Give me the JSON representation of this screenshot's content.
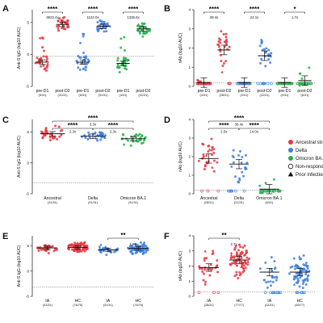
{
  "colors": {
    "ancestral": "#e8363f",
    "delta": "#3f7fe0",
    "omicron": "#22b04a",
    "axis": "#111111"
  },
  "legend": {
    "items": [
      {
        "label": "Ancestral strain",
        "marker": "circle-filled",
        "color": "#e8363f"
      },
      {
        "label": "Delta",
        "marker": "circle-filled",
        "color": "#3f7fe0"
      },
      {
        "label": "Omicron BA.1",
        "marker": "circle-filled",
        "color": "#22b04a"
      },
      {
        "label": "Non-responders",
        "marker": "circle-open",
        "color": "#111111"
      },
      {
        "label": "Prior infection",
        "marker": "triangle-filled",
        "color": "#111111"
      }
    ]
  },
  "chart_data": [
    {
      "panel": "A",
      "type": "scatter",
      "ylabel": "Anti-S IgG (log10 AUC)",
      "ylim": [
        -5,
        7
      ],
      "yticks": [
        -5,
        0,
        5
      ],
      "cutoff": -0.3,
      "cutoff_style": "dotted",
      "categories": [
        {
          "label": "pre-D1",
          "n_text": "(6/31)",
          "strain": "ancestral",
          "median": -1.2,
          "n": 31
        },
        {
          "label": "post-D2",
          "n_text": "(31/31)",
          "strain": "ancestral",
          "median": 4.7,
          "n": 31
        },
        {
          "label": "pre-D1",
          "n_text": "(6/31)",
          "strain": "delta",
          "median": -1.2,
          "n": 31
        },
        {
          "label": "post-D2",
          "n_text": "(31/31)",
          "strain": "delta",
          "median": 4.4,
          "n": 31
        },
        {
          "label": "pre-D1",
          "n_text": "(4/31)",
          "strain": "omicron",
          "median": -1.4,
          "n": 31
        },
        {
          "label": "post-D2",
          "n_text": "(31/31)",
          "strain": "omicron",
          "median": 4.0,
          "n": 31
        }
      ],
      "annotations": [
        {
          "text": "****",
          "between": [
            0,
            1
          ],
          "fold": "3622.4x"
        },
        {
          "text": "****",
          "between": [
            2,
            3
          ],
          "fold": "1122.0x"
        },
        {
          "text": "****",
          "between": [
            4,
            5
          ],
          "fold": "1336.6x"
        }
      ]
    },
    {
      "panel": "B",
      "type": "scatter",
      "ylabel": "nAb (log10 AUC)",
      "ylim": [
        0,
        4
      ],
      "yticks": [
        0,
        1,
        2,
        3,
        4
      ],
      "cutoff": 0.2,
      "cutoff_style": "dotted",
      "categories": [
        {
          "label": "pre-D1",
          "n_text": "(4/31)",
          "strain": "ancestral",
          "median": 0.2,
          "n": 31
        },
        {
          "label": "post-D2",
          "n_text": "(28/31)",
          "strain": "ancestral",
          "median": 1.9,
          "n": 31
        },
        {
          "label": "pre-D1",
          "n_text": "(0/31)",
          "strain": "delta",
          "median": 0.2,
          "n": 31
        },
        {
          "label": "post-D2",
          "n_text": "(22/31)",
          "strain": "delta",
          "median": 1.6,
          "n": 31
        },
        {
          "label": "pre-D1",
          "n_text": "(0/31)",
          "strain": "omicron",
          "median": 0.2,
          "n": 31
        },
        {
          "label": "post-D2",
          "n_text": "(6/31)",
          "strain": "omicron",
          "median": 0.3,
          "n": 31
        }
      ],
      "annotations": [
        {
          "text": "****",
          "between": [
            0,
            1
          ],
          "fold": "39.4x"
        },
        {
          "text": "****",
          "between": [
            2,
            3
          ],
          "fold": "24.1x"
        },
        {
          "text": "*",
          "between": [
            4,
            5
          ],
          "fold": "1.7x"
        }
      ]
    },
    {
      "panel": "C",
      "type": "scatter",
      "ylabel": "Anti-S IgG (log10 AUC)",
      "ylim": [
        -5,
        7
      ],
      "yticks": [
        -5,
        0,
        5
      ],
      "cutoff": -3.2,
      "cutoff_style": "dotted",
      "categories": [
        {
          "label": "Ancestral",
          "n_text": "(31/31)",
          "strain": "ancestral",
          "median": 4.7,
          "n": 31
        },
        {
          "label": "Delta",
          "n_text": "(31/31)",
          "strain": "delta",
          "median": 4.3,
          "n": 31
        },
        {
          "label": "Omicron BA.1",
          "n_text": "(31/31)",
          "strain": "omicron",
          "median": 3.9,
          "n": 31
        }
      ],
      "annotations": [
        {
          "text": "****",
          "between": [
            0,
            2
          ],
          "fold": "3.3x"
        },
        {
          "text": "****",
          "between": [
            0,
            1
          ],
          "fold": "2.3x"
        },
        {
          "text": "****",
          "between": [
            1,
            2
          ],
          "fold": "2.3x"
        }
      ]
    },
    {
      "panel": "D",
      "type": "scatter",
      "ylabel": "nAb (log10 AUC)",
      "ylim": [
        0,
        4
      ],
      "yticks": [
        0,
        1,
        2,
        3,
        4
      ],
      "cutoff": 0.2,
      "cutoff_style": "dotted",
      "categories": [
        {
          "label": "Ancestral",
          "n_text": "(28/31)",
          "strain": "ancestral",
          "median": 1.9,
          "n": 31
        },
        {
          "label": "Delta",
          "n_text": "(22/31)",
          "strain": "delta",
          "median": 1.6,
          "n": 31
        },
        {
          "label": "Omicron BA.1",
          "n_text": "(6/31)",
          "strain": "omicron",
          "median": 0.25,
          "n": 31
        }
      ],
      "annotations": [
        {
          "text": "****",
          "between": [
            0,
            2
          ],
          "fold": "36.4x"
        },
        {
          "text": "****",
          "between": [
            0,
            1
          ],
          "fold": "2.5x"
        },
        {
          "text": "****",
          "between": [
            1,
            2
          ],
          "fold": "14.0x"
        }
      ]
    },
    {
      "panel": "E",
      "type": "scatter",
      "ylabel": "Anti-S IgG (log10 AUC)",
      "ylim": [
        -5,
        7
      ],
      "yticks": [
        -5,
        0,
        5
      ],
      "cutoff": -3.2,
      "cutoff_style": "dotted",
      "categories": [
        {
          "label": "IA",
          "n_text": "(31/31)",
          "strain": "ancestral",
          "median": 4.6,
          "n": 31
        },
        {
          "label": "HC",
          "n_text": "(76/76)",
          "strain": "ancestral",
          "median": 4.7,
          "n": 76
        },
        {
          "label": "IA",
          "n_text": "(31/31)",
          "strain": "delta",
          "median": 4.2,
          "n": 31
        },
        {
          "label": "HC",
          "n_text": "(76/76)",
          "strain": "delta",
          "median": 4.5,
          "n": 76
        }
      ],
      "annotations": [
        {
          "text": "**",
          "between": [
            2,
            3
          ],
          "fold": "1.8x"
        }
      ]
    },
    {
      "panel": "F",
      "type": "scatter",
      "ylabel": "nAb (log10 AUC)",
      "ylim": [
        0,
        4
      ],
      "yticks": [
        0,
        1,
        2,
        3,
        4
      ],
      "cutoff": 0.3,
      "cutoff_style": "dotted",
      "categories": [
        {
          "label": "IA",
          "n_text": "(28/31)",
          "strain": "ancestral",
          "median": 1.9,
          "n": 31
        },
        {
          "label": "HC",
          "n_text": "(77/77)",
          "strain": "ancestral",
          "median": 2.4,
          "n": 77
        },
        {
          "label": "IA",
          "n_text": "(22/31)",
          "strain": "delta",
          "median": 1.6,
          "n": 31
        },
        {
          "label": "HC",
          "n_text": "(69/77)",
          "strain": "delta",
          "median": 1.6,
          "n": 77
        }
      ],
      "annotations": [
        {
          "text": "**",
          "between": [
            0,
            1
          ],
          "fold": "2.7x"
        }
      ]
    }
  ]
}
